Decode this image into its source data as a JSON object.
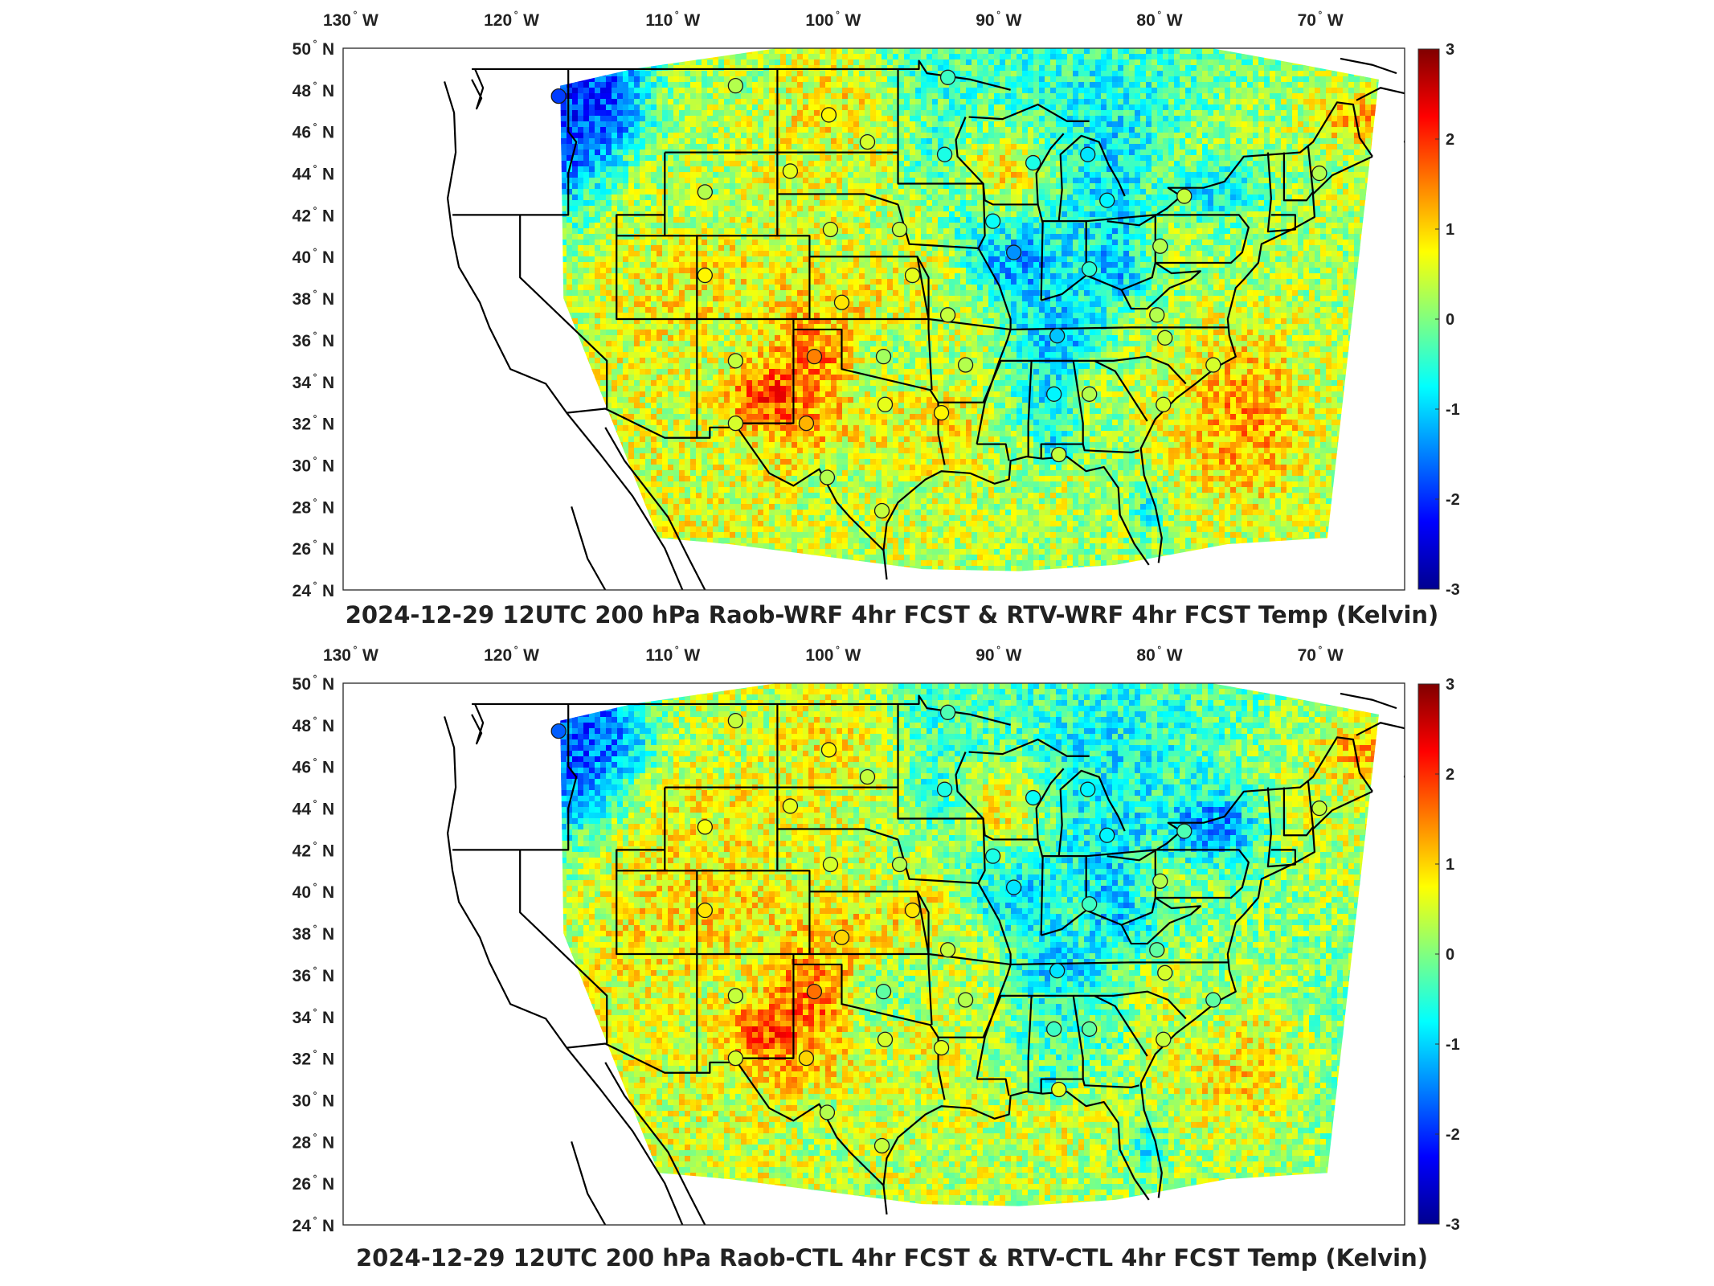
{
  "panels": [
    {
      "id": "top",
      "title": "2024-12-29 12UTC 200 hPa Raob-WRF 4hr FCST & RTV-WRF 4hr FCST Temp (Kelvin)"
    },
    {
      "id": "bottom",
      "title": "2024-12-29 12UTC 200 hPa Raob-CTL 4hr FCST & RTV-CTL 4hr FCST Temp (Kelvin)"
    }
  ],
  "lon_labels": [
    {
      "value": "130",
      "hemi": "W"
    },
    {
      "value": "120",
      "hemi": "W"
    },
    {
      "value": "110",
      "hemi": "W"
    },
    {
      "value": "100",
      "hemi": "W"
    },
    {
      "value": "90",
      "hemi": "W"
    },
    {
      "value": "80",
      "hemi": "W"
    },
    {
      "value": "70",
      "hemi": "W"
    }
  ],
  "lat_labels": [
    {
      "value": "50",
      "hemi": "N"
    },
    {
      "value": "48",
      "hemi": "N"
    },
    {
      "value": "46",
      "hemi": "N"
    },
    {
      "value": "44",
      "hemi": "N"
    },
    {
      "value": "42",
      "hemi": "N"
    },
    {
      "value": "40",
      "hemi": "N"
    },
    {
      "value": "38",
      "hemi": "N"
    },
    {
      "value": "36",
      "hemi": "N"
    },
    {
      "value": "34",
      "hemi": "N"
    },
    {
      "value": "32",
      "hemi": "N"
    },
    {
      "value": "30",
      "hemi": "N"
    },
    {
      "value": "28",
      "hemi": "N"
    },
    {
      "value": "26",
      "hemi": "N"
    },
    {
      "value": "24",
      "hemi": "N"
    }
  ],
  "colorbar": {
    "ticks": [
      "3",
      "2",
      "1",
      "0",
      "-1",
      "-2",
      "-3"
    ],
    "colormap": [
      "#00008f",
      "#0000ff",
      "#0080ff",
      "#00ffff",
      "#80ff80",
      "#ffff00",
      "#ff8000",
      "#ff0000",
      "#800000"
    ]
  },
  "colors": {
    "outline": "#000000",
    "warm": "#f08a2a",
    "cool": "#3fb3e8",
    "neutral": "#a6e06a"
  },
  "chart_data": {
    "type": "heatmap",
    "colorbar_range": [
      -3,
      3
    ],
    "lon_range_deg_west": [
      131,
      65
    ],
    "lat_range_deg_north": [
      24,
      50
    ],
    "raob_sites": [
      {
        "lat": 47.7,
        "lon": -117.6,
        "top": -1.9,
        "bottom": -1.7
      },
      {
        "lat": 48.2,
        "lon": -106.6,
        "top": 0.3,
        "bottom": 0.4
      },
      {
        "lat": 46.8,
        "lon": -100.8,
        "top": 0.8,
        "bottom": 0.8
      },
      {
        "lat": 45.5,
        "lon": -98.4,
        "top": 0.5,
        "bottom": 0.4
      },
      {
        "lat": 48.6,
        "lon": -93.4,
        "top": -0.4,
        "bottom": -0.3
      },
      {
        "lat": 44.9,
        "lon": -93.6,
        "top": -0.6,
        "bottom": -0.6
      },
      {
        "lat": 44.5,
        "lon": -88.1,
        "top": -0.6,
        "bottom": -0.7
      },
      {
        "lat": 44.9,
        "lon": -84.7,
        "top": -0.9,
        "bottom": -0.8
      },
      {
        "lat": 44.1,
        "lon": -103.2,
        "top": 0.6,
        "bottom": 0.6
      },
      {
        "lat": 43.1,
        "lon": -108.5,
        "top": 0.3,
        "bottom": 0.7
      },
      {
        "lat": 41.3,
        "lon": -100.7,
        "top": 0.5,
        "bottom": 0.5
      },
      {
        "lat": 41.3,
        "lon": -96.4,
        "top": 0.4,
        "bottom": 0.3
      },
      {
        "lat": 41.7,
        "lon": -90.6,
        "top": -0.7,
        "bottom": -0.6
      },
      {
        "lat": 42.7,
        "lon": -83.5,
        "top": -0.8,
        "bottom": -0.8
      },
      {
        "lat": 42.9,
        "lon": -78.7,
        "top": 0.4,
        "bottom": -0.3
      },
      {
        "lat": 44.0,
        "lon": -70.3,
        "top": 0.3,
        "bottom": 0.4
      },
      {
        "lat": 40.5,
        "lon": -80.2,
        "top": 0.3,
        "bottom": 0.3
      },
      {
        "lat": 40.2,
        "lon": -89.3,
        "top": -1.4,
        "bottom": -0.9
      },
      {
        "lat": 39.4,
        "lon": -84.6,
        "top": -0.5,
        "bottom": -0.4
      },
      {
        "lat": 39.1,
        "lon": -108.5,
        "top": 0.8,
        "bottom": 0.9
      },
      {
        "lat": 39.1,
        "lon": -95.6,
        "top": 0.6,
        "bottom": 0.9
      },
      {
        "lat": 37.8,
        "lon": -100.0,
        "top": 0.9,
        "bottom": 1.0
      },
      {
        "lat": 37.2,
        "lon": -93.4,
        "top": 0.4,
        "bottom": 0.4
      },
      {
        "lat": 37.2,
        "lon": -80.4,
        "top": 0.3,
        "bottom": -0.2
      },
      {
        "lat": 36.2,
        "lon": -86.6,
        "top": -1.1,
        "bottom": -0.9
      },
      {
        "lat": 36.1,
        "lon": -79.9,
        "top": 0.4,
        "bottom": 0.5
      },
      {
        "lat": 35.0,
        "lon": -106.6,
        "top": 0.4,
        "bottom": 0.4
      },
      {
        "lat": 35.2,
        "lon": -101.7,
        "top": 1.5,
        "bottom": 1.6
      },
      {
        "lat": 35.2,
        "lon": -97.4,
        "top": 0.2,
        "bottom": -0.2
      },
      {
        "lat": 34.8,
        "lon": -92.3,
        "top": 0.3,
        "bottom": 0.3
      },
      {
        "lat": 34.8,
        "lon": -76.9,
        "top": 0.5,
        "bottom": -0.2
      },
      {
        "lat": 33.4,
        "lon": -86.8,
        "top": -0.8,
        "bottom": -0.4
      },
      {
        "lat": 33.4,
        "lon": -84.6,
        "top": 0.3,
        "bottom": -0.2
      },
      {
        "lat": 32.9,
        "lon": -97.3,
        "top": 0.6,
        "bottom": 0.5
      },
      {
        "lat": 32.5,
        "lon": -93.8,
        "top": 0.8,
        "bottom": 0.6
      },
      {
        "lat": 32.9,
        "lon": -80.0,
        "top": 0.5,
        "bottom": 0.4
      },
      {
        "lat": 32.0,
        "lon": -106.6,
        "top": 0.5,
        "bottom": 0.5
      },
      {
        "lat": 32.0,
        "lon": -102.2,
        "top": 1.2,
        "bottom": 1.0
      },
      {
        "lat": 30.5,
        "lon": -86.5,
        "top": 0.4,
        "bottom": 0.6
      },
      {
        "lat": 29.4,
        "lon": -100.9,
        "top": 0.3,
        "bottom": 0.3
      },
      {
        "lat": 27.8,
        "lon": -97.5,
        "top": 0.4,
        "bottom": 0.4
      }
    ]
  }
}
